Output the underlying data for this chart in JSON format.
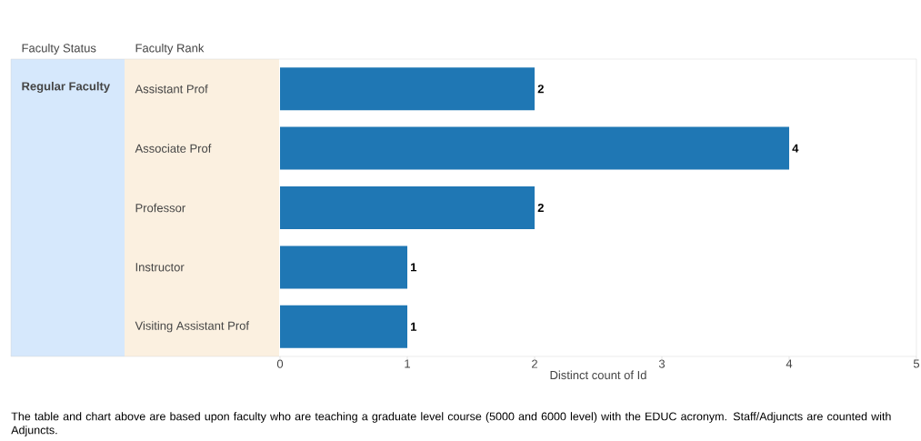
{
  "chart_data": {
    "type": "bar",
    "orientation": "horizontal",
    "categories": [
      "Assistant Prof",
      "Associate Prof",
      "Professor",
      "Instructor",
      "Visiting Assistant Prof"
    ],
    "values": [
      2,
      4,
      2,
      1,
      1
    ],
    "color": "#1f77b4",
    "data_labels": true,
    "xlim": [
      0,
      5
    ],
    "xticks": [
      0,
      1,
      2,
      3,
      4,
      5
    ],
    "xlabel": "Distinct count of Id",
    "annotations": [
      "Faculty Status",
      "Faculty Rank",
      "Regular Faculty",
      "The table and chart above are based upon faculty who are teaching a graduate level course (5000 and 6000 level) with the EDUC acronym. Staff/Adjuncts are counted with Adjuncts."
    ]
  }
}
